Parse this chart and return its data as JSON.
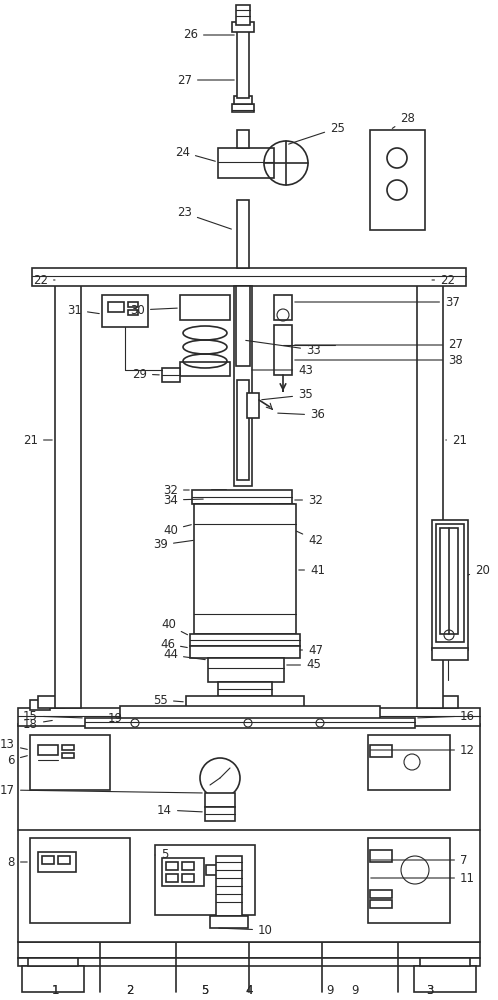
{
  "bg_color": "#ffffff",
  "line_color": "#2a2a2a",
  "label_color": "#2a2a2a",
  "fig_width": 4.98,
  "fig_height": 10.0,
  "dpi": 100
}
